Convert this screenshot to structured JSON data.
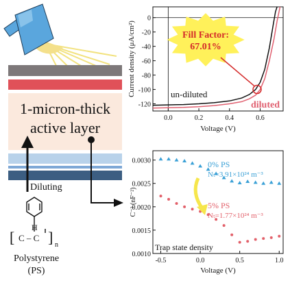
{
  "device": {
    "active_layer_label_line1": "1-micron-thick",
    "active_layer_label_line2": "active layer",
    "diluting_label": "Diluting",
    "colors": {
      "electrode_top": "#7d7879",
      "red_layer": "#e05159",
      "active": "#fbe9dd",
      "blue_light": "#b8d2ea",
      "blue_mid": "#7ea8d6",
      "blue_dark": "#3c5e82",
      "lamp": "#5aa6dd",
      "sun": "#f4e08b",
      "rays": "#f2e27f"
    }
  },
  "polymer": {
    "name_line1": "Polystyrene",
    "name_line2": "(PS)",
    "subscript": "n",
    "h_label": "H",
    "chain_label": "C – C",
    "bracket_left": "[",
    "bracket_right": "]"
  },
  "chart_data": [
    {
      "type": "line",
      "ylabel": "Current density (μA/cm²)",
      "xlabel": "Voltage (V)",
      "xlim": [
        -0.1,
        0.75
      ],
      "ylim": [
        -130,
        15
      ],
      "xticks": [
        "0.0",
        "0.2",
        "0.4",
        "0.6"
      ],
      "yticks": [
        "0",
        "-20",
        "-40",
        "-60",
        "-80",
        "-100",
        "-120"
      ],
      "series": [
        {
          "name": "un-diluted",
          "color": "#111111",
          "points": [
            [
              -0.1,
              -122
            ],
            [
              0.0,
              -121.5
            ],
            [
              0.1,
              -121
            ],
            [
              0.2,
              -120
            ],
            [
              0.3,
              -118.5
            ],
            [
              0.4,
              -116
            ],
            [
              0.48,
              -112
            ],
            [
              0.53,
              -107
            ],
            [
              0.57,
              -100
            ],
            [
              0.6,
              -90
            ],
            [
              0.63,
              -72
            ],
            [
              0.66,
              -42
            ],
            [
              0.685,
              -10
            ],
            [
              0.7,
              8
            ],
            [
              0.71,
              15
            ]
          ]
        },
        {
          "name": "diluted",
          "color": "#e06070",
          "points": [
            [
              -0.1,
              -126
            ],
            [
              0.0,
              -125.5
            ],
            [
              0.1,
              -125
            ],
            [
              0.2,
              -124
            ],
            [
              0.3,
              -122.5
            ],
            [
              0.4,
              -120
            ],
            [
              0.48,
              -117
            ],
            [
              0.53,
              -113
            ],
            [
              0.57,
              -108
            ],
            [
              0.6,
              -100
            ],
            [
              0.63,
              -85
            ],
            [
              0.66,
              -60
            ],
            [
              0.69,
              -30
            ],
            [
              0.71,
              -5
            ],
            [
              0.725,
              10
            ],
            [
              0.73,
              15
            ]
          ]
        }
      ],
      "callout": {
        "line1": "Fill Factor:",
        "line2": "67.01%",
        "fill": "#fff15a",
        "text_color": "#d42a2a",
        "target": [
          0.58,
          -100
        ]
      },
      "label_undiluted": "un-diluted",
      "label_diluted": "diluted"
    },
    {
      "type": "scatter",
      "ylabel": "C⁻² (nF⁻²)",
      "xlabel": "Voltage (V)",
      "xlim": [
        -0.6,
        1.05
      ],
      "ylim": [
        0.001,
        0.0032
      ],
      "xticks": [
        "-0.5",
        "0.0",
        "0.5",
        "1.0"
      ],
      "yticks": [
        "0.0030",
        "0.0025",
        "0.0020",
        "0.0015",
        "0.0010"
      ],
      "series": [
        {
          "name": "0% PS",
          "color": "#3aa0d6",
          "marker": "triangle",
          "points": [
            [
              -0.5,
              0.00302
            ],
            [
              -0.4,
              0.00302
            ],
            [
              -0.3,
              0.003
            ],
            [
              -0.2,
              0.00298
            ],
            [
              -0.1,
              0.00293
            ],
            [
              0.0,
              0.00287
            ],
            [
              0.1,
              0.0028
            ],
            [
              0.2,
              0.00271
            ],
            [
              0.3,
              0.00262
            ],
            [
              0.4,
              0.00255
            ],
            [
              0.5,
              0.00251
            ],
            [
              0.6,
              0.00254
            ],
            [
              0.7,
              0.00252
            ],
            [
              0.8,
              0.0025
            ],
            [
              0.9,
              0.00252
            ],
            [
              1.0,
              0.0025
            ]
          ]
        },
        {
          "name": "5% PS",
          "color": "#e2606a",
          "marker": "dot",
          "points": [
            [
              -0.5,
              0.00223
            ],
            [
              -0.4,
              0.00216
            ],
            [
              -0.3,
              0.00207
            ],
            [
              -0.2,
              0.002
            ],
            [
              -0.1,
              0.00195
            ],
            [
              0.0,
              0.0019
            ],
            [
              0.1,
              0.00183
            ],
            [
              0.2,
              0.00173
            ],
            [
              0.3,
              0.0016
            ],
            [
              0.4,
              0.0014
            ],
            [
              0.5,
              0.00124
            ],
            [
              0.6,
              0.00126
            ],
            [
              0.7,
              0.0013
            ],
            [
              0.8,
              0.00132
            ],
            [
              0.9,
              0.00134
            ],
            [
              1.0,
              0.00137
            ]
          ]
        }
      ],
      "label_0ps_name": "0% PS",
      "label_0ps_value": "Nₜ=3.91×10²⁴ m⁻³",
      "label_5ps_name": "5% PS",
      "label_5ps_value": "Nₜ=1.77×10²⁴ m⁻³",
      "annotation": "Trap state density",
      "arrow_color": "#f6e64c"
    }
  ]
}
